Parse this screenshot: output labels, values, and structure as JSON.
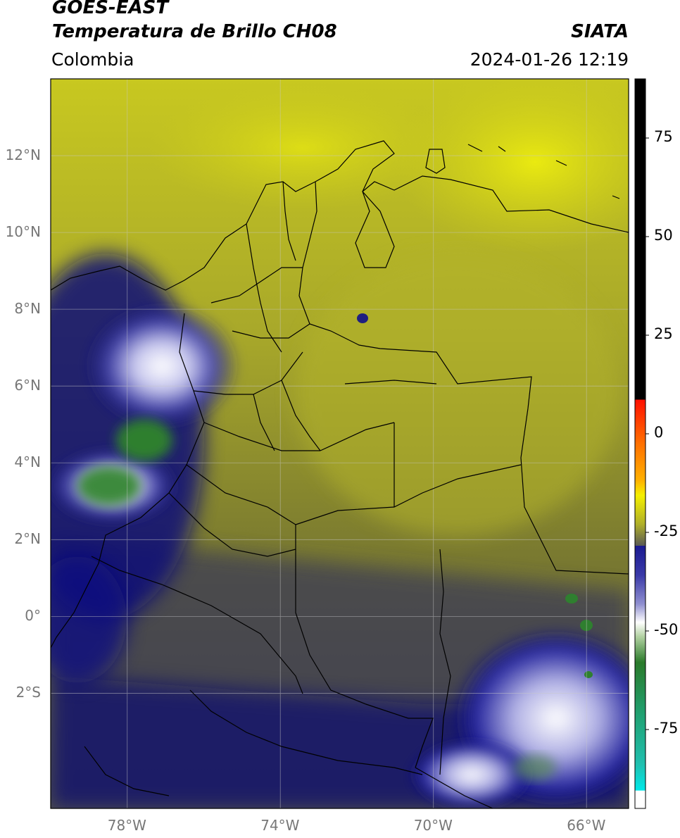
{
  "header": {
    "satellite": "GOES-EAST",
    "product": "Temperatura de Brillo CH08",
    "brand": "SIATA",
    "region": "Colombia",
    "datetime": "2024-01-26 12:19"
  },
  "map": {
    "lon_range": [
      -80.0,
      -64.9
    ],
    "lat_range": [
      -5.0,
      14.0
    ],
    "lat_ticks": [
      {
        "value": 12,
        "label": "12°N"
      },
      {
        "value": 10,
        "label": "10°N"
      },
      {
        "value": 8,
        "label": "8°N"
      },
      {
        "value": 6,
        "label": "6°N"
      },
      {
        "value": 4,
        "label": "4°N"
      },
      {
        "value": 2,
        "label": "2°N"
      },
      {
        "value": 0,
        "label": "0°"
      },
      {
        "value": -2,
        "label": "2°S"
      }
    ],
    "lon_ticks": [
      {
        "value": -78,
        "label": "78°W"
      },
      {
        "value": -74,
        "label": "74°W"
      },
      {
        "value": -70,
        "label": "70°W"
      },
      {
        "value": -66,
        "label": "66°W"
      }
    ],
    "grid": true
  },
  "colorbar": {
    "range": [
      -95,
      90
    ],
    "ticks": [
      {
        "value": 75,
        "label": "75"
      },
      {
        "value": 50,
        "label": "50"
      },
      {
        "value": 25,
        "label": "25"
      },
      {
        "value": 0,
        "label": "0"
      },
      {
        "value": -25,
        "label": "-25"
      },
      {
        "value": -50,
        "label": "-50"
      },
      {
        "value": -75,
        "label": "-75"
      }
    ],
    "colors": {
      "black": "#000000",
      "red": "#ff2000",
      "orange": "#ff9000",
      "yellow": "#f5f000",
      "olive": "#8a8a2a",
      "gray": "#4a4a55",
      "navy": "#000080",
      "white": "#ffffff",
      "green": "#2a7a2a",
      "cyan": "#00e0e0"
    }
  }
}
